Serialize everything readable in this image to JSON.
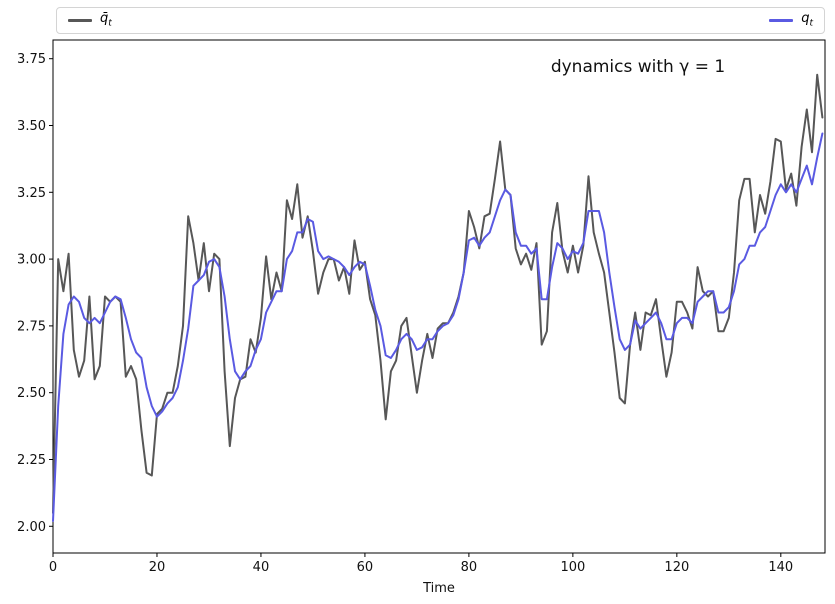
{
  "figure": {
    "annotation": "dynamics with γ = 1",
    "xlabel": "Time"
  },
  "legend": {
    "items": [
      {
        "name": "q-bar-series",
        "label_base": "q̄",
        "label_sub": "t",
        "color": "#575757"
      },
      {
        "name": "q-series",
        "label_base": "q",
        "label_sub": "t",
        "color": "#5a5ae2"
      }
    ]
  },
  "colors": {
    "gray_series": "#575757",
    "blue_series": "#5a5ae2",
    "axis": "#000000",
    "background": "#ffffff",
    "legend_border": "#d4d4d4"
  },
  "chart_data": {
    "type": "line",
    "title": "",
    "annotation": "dynamics with γ = 1",
    "xlabel": "Time",
    "ylabel": "",
    "xlim": [
      0,
      148.5
    ],
    "ylim": [
      1.9,
      3.82
    ],
    "grid": false,
    "legend_position": "single wide box across the top of the axes; left entry q̄_t (gray), right entry q_t (blue)",
    "x_step": 1,
    "x_ticks": {
      "values": [
        0,
        20,
        40,
        60,
        80,
        100,
        120,
        140
      ],
      "labels": [
        "0",
        "20",
        "40",
        "60",
        "80",
        "100",
        "120",
        "140"
      ]
    },
    "y_ticks": {
      "values": [
        2.0,
        2.25,
        2.5,
        2.75,
        3.0,
        3.25,
        3.5,
        3.75
      ],
      "labels": [
        "2.00",
        "2.25",
        "2.50",
        "2.75",
        "3.00",
        "3.25",
        "3.50",
        "3.75"
      ]
    },
    "series": [
      {
        "name": "q̄_t",
        "color": "#575757",
        "linewidth": 2,
        "values": [
          2.05,
          3.0,
          2.88,
          3.02,
          2.66,
          2.56,
          2.62,
          2.86,
          2.55,
          2.6,
          2.86,
          2.84,
          2.86,
          2.84,
          2.56,
          2.6,
          2.55,
          2.36,
          2.2,
          2.19,
          2.42,
          2.44,
          2.5,
          2.5,
          2.6,
          2.75,
          3.16,
          3.06,
          2.92,
          3.06,
          2.88,
          3.02,
          3.0,
          2.58,
          2.3,
          2.48,
          2.55,
          2.56,
          2.7,
          2.65,
          2.78,
          3.01,
          2.85,
          2.95,
          2.88,
          3.22,
          3.15,
          3.28,
          3.08,
          3.16,
          3.03,
          2.87,
          2.95,
          3.0,
          3.0,
          2.92,
          2.97,
          2.87,
          3.07,
          2.96,
          2.99,
          2.85,
          2.79,
          2.62,
          2.4,
          2.58,
          2.62,
          2.75,
          2.78,
          2.64,
          2.5,
          2.62,
          2.72,
          2.63,
          2.74,
          2.76,
          2.76,
          2.8,
          2.86,
          2.95,
          3.18,
          3.12,
          3.04,
          3.16,
          3.17,
          3.3,
          3.44,
          3.26,
          3.24,
          3.04,
          2.98,
          3.02,
          2.96,
          3.06,
          2.68,
          2.73,
          3.1,
          3.21,
          3.03,
          2.95,
          3.05,
          2.95,
          3.05,
          3.31,
          3.1,
          3.02,
          2.95,
          2.8,
          2.65,
          2.48,
          2.46,
          2.68,
          2.8,
          2.66,
          2.8,
          2.79,
          2.85,
          2.7,
          2.56,
          2.65,
          2.84,
          2.84,
          2.8,
          2.74,
          2.97,
          2.88,
          2.86,
          2.88,
          2.73,
          2.73,
          2.78,
          2.95,
          3.22,
          3.3,
          3.3,
          3.1,
          3.24,
          3.17,
          3.29,
          3.45,
          3.44,
          3.26,
          3.32,
          3.2,
          3.42,
          3.56,
          3.4,
          3.69,
          3.53
        ]
      },
      {
        "name": "q_t",
        "color": "#5a5ae2",
        "linewidth": 2,
        "values": [
          2.02,
          2.45,
          2.72,
          2.83,
          2.86,
          2.84,
          2.78,
          2.76,
          2.78,
          2.76,
          2.8,
          2.84,
          2.86,
          2.85,
          2.78,
          2.7,
          2.65,
          2.63,
          2.52,
          2.45,
          2.41,
          2.43,
          2.46,
          2.48,
          2.52,
          2.62,
          2.74,
          2.9,
          2.92,
          2.94,
          2.99,
          3.0,
          2.97,
          2.86,
          2.7,
          2.58,
          2.55,
          2.58,
          2.6,
          2.66,
          2.7,
          2.8,
          2.84,
          2.88,
          2.88,
          3.0,
          3.03,
          3.1,
          3.1,
          3.15,
          3.14,
          3.03,
          3.0,
          3.01,
          3.0,
          2.99,
          2.97,
          2.94,
          2.97,
          2.99,
          2.98,
          2.9,
          2.81,
          2.75,
          2.64,
          2.63,
          2.66,
          2.7,
          2.72,
          2.7,
          2.66,
          2.67,
          2.7,
          2.7,
          2.73,
          2.75,
          2.76,
          2.79,
          2.85,
          2.95,
          3.07,
          3.08,
          3.05,
          3.08,
          3.1,
          3.16,
          3.22,
          3.26,
          3.24,
          3.1,
          3.05,
          3.05,
          3.02,
          3.04,
          2.85,
          2.85,
          2.97,
          3.06,
          3.04,
          3.0,
          3.03,
          3.02,
          3.06,
          3.18,
          3.18,
          3.18,
          3.1,
          2.95,
          2.82,
          2.7,
          2.66,
          2.68,
          2.77,
          2.74,
          2.76,
          2.78,
          2.8,
          2.76,
          2.7,
          2.7,
          2.76,
          2.78,
          2.78,
          2.76,
          2.84,
          2.86,
          2.88,
          2.88,
          2.8,
          2.8,
          2.82,
          2.88,
          2.98,
          3.0,
          3.05,
          3.05,
          3.1,
          3.12,
          3.18,
          3.24,
          3.28,
          3.25,
          3.28,
          3.25,
          3.3,
          3.35,
          3.28,
          3.38,
          3.47
        ]
      }
    ]
  }
}
